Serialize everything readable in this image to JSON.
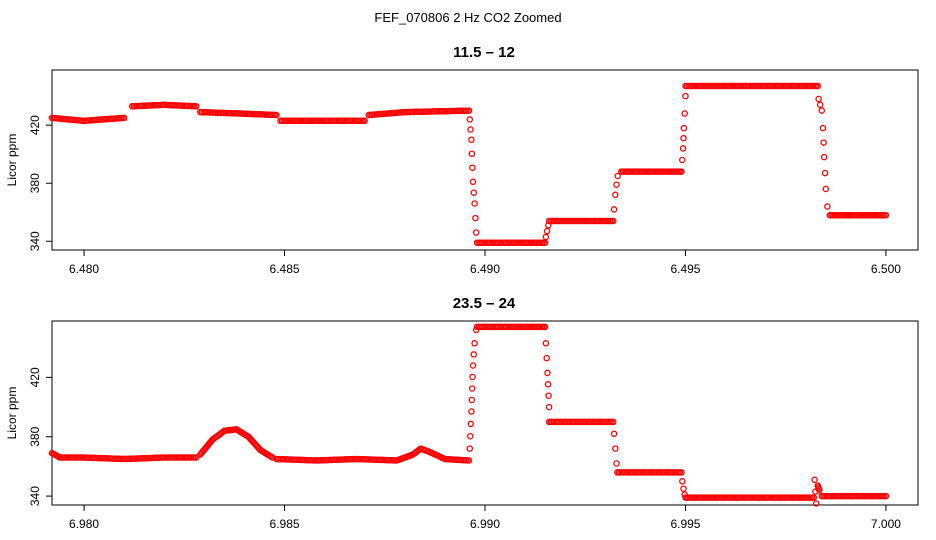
{
  "figure": {
    "title": "FEF_070806  2 Hz CO2 Zoomed"
  },
  "colors": {
    "points": "#ff0000",
    "axes": "#000000",
    "background": "#ffffff"
  },
  "chart_data": [
    {
      "type": "scatter",
      "title": "11.5 – 12",
      "xlabel": "",
      "ylabel": "Licor ppm",
      "xlim": [
        6.4792,
        6.5008
      ],
      "ylim": [
        334,
        458
      ],
      "xticks": [
        6.48,
        6.485,
        6.49,
        6.495,
        6.5
      ],
      "xtick_labels": [
        "6.480",
        "6.485",
        "6.490",
        "6.495",
        "6.500"
      ],
      "yticks": [
        340,
        380,
        420
      ],
      "ytick_labels": [
        "340",
        "380",
        "420"
      ],
      "grid": false,
      "legend": "none",
      "marker": "open-circle",
      "segments": [
        {
          "x": [
            6.4792,
            6.48,
            6.481
          ],
          "y": [
            425,
            423,
            425
          ]
        },
        {
          "x": [
            6.4812,
            6.482,
            6.4828
          ],
          "y": [
            433,
            434,
            433
          ]
        },
        {
          "x": [
            6.4829,
            6.4839,
            6.4848
          ],
          "y": [
            429,
            428,
            427
          ]
        },
        {
          "x": [
            6.4849,
            6.486,
            6.487
          ],
          "y": [
            423,
            423,
            423
          ]
        },
        {
          "x": [
            6.4871,
            6.488,
            6.4896
          ],
          "y": [
            427,
            429,
            430
          ]
        },
        {
          "x": [
            6.48962,
            6.48966,
            6.4897,
            6.48974,
            6.48978
          ],
          "y": [
            424,
            410,
            381,
            366,
            346
          ]
        },
        {
          "x": [
            6.4898,
            6.4906,
            6.4915
          ],
          "y": [
            339,
            339,
            339
          ]
        },
        {
          "x": [
            6.49152,
            6.49155,
            6.49158
          ],
          "y": [
            343,
            347,
            351
          ]
        },
        {
          "x": [
            6.4916,
            6.4924,
            6.4932
          ],
          "y": [
            354,
            354,
            354
          ]
        },
        {
          "x": [
            6.49322,
            6.49325,
            6.49328,
            6.49331
          ],
          "y": [
            362,
            372,
            379,
            385
          ]
        },
        {
          "x": [
            6.4934,
            6.4942,
            6.4949
          ],
          "y": [
            388,
            388,
            388
          ]
        },
        {
          "x": [
            6.49492,
            6.49494,
            6.49496,
            6.49498,
            6.495
          ],
          "y": [
            396,
            404,
            418,
            428,
            440
          ]
        },
        {
          "x": [
            6.495,
            6.4967,
            6.4983
          ],
          "y": [
            447,
            447,
            447
          ]
        },
        {
          "x": [
            6.49832,
            6.49836,
            6.4984,
            6.49843,
            6.49846,
            6.4985,
            6.49854
          ],
          "y": [
            438,
            434,
            430,
            418,
            398,
            376,
            364
          ]
        },
        {
          "x": [
            6.4986,
            6.4993,
            6.5
          ],
          "y": [
            358,
            358,
            358
          ]
        }
      ]
    },
    {
      "type": "scatter",
      "title": "23.5 – 24",
      "xlabel": "",
      "ylabel": "Licor ppm",
      "xlim": [
        6.9792,
        7.0008
      ],
      "ylim": [
        334,
        458
      ],
      "xticks": [
        6.98,
        6.985,
        6.99,
        6.995,
        7.0
      ],
      "xtick_labels": [
        "6.980",
        "6.985",
        "6.990",
        "6.995",
        "7.000"
      ],
      "yticks": [
        340,
        380,
        420
      ],
      "ytick_labels": [
        "340",
        "380",
        "420"
      ],
      "grid": false,
      "legend": "none",
      "marker": "open-circle",
      "segments": [
        {
          "x": [
            6.9792,
            6.9794,
            6.98,
            6.981,
            6.982,
            6.9828
          ],
          "y": [
            369,
            366,
            366,
            365,
            366,
            366
          ]
        },
        {
          "x": [
            6.9829,
            6.9832,
            6.9835,
            6.9838,
            6.9841,
            6.9844,
            6.9847
          ],
          "y": [
            368,
            378,
            384,
            385,
            380,
            371,
            366
          ]
        },
        {
          "x": [
            6.9848,
            6.9858,
            6.9868,
            6.9878,
            6.9882,
            6.9884,
            6.9886,
            6.989,
            6.9896
          ],
          "y": [
            365,
            364,
            365,
            364,
            368,
            372,
            370,
            365,
            364
          ]
        },
        {
          "x": [
            6.98962,
            6.98966,
            6.9897,
            6.98974,
            6.98978
          ],
          "y": [
            372,
            397,
            428,
            443,
            452
          ]
        },
        {
          "x": [
            6.9898,
            6.9906,
            6.9915
          ],
          "y": [
            454,
            454,
            454
          ]
        },
        {
          "x": [
            6.99152,
            6.99156,
            6.9916,
            6.99164
          ],
          "y": [
            443,
            423,
            400,
            390
          ]
        },
        {
          "x": [
            6.9916,
            6.9924,
            6.9932
          ],
          "y": [
            390,
            390,
            390
          ]
        },
        {
          "x": [
            6.99322,
            6.99325,
            6.99328
          ],
          "y": [
            382,
            372,
            362
          ]
        },
        {
          "x": [
            6.9933,
            6.9941,
            6.9949
          ],
          "y": [
            356,
            356,
            356
          ]
        },
        {
          "x": [
            6.99492,
            6.99495,
            6.99498
          ],
          "y": [
            350,
            345,
            341
          ]
        },
        {
          "x": [
            6.995,
            6.9965,
            6.9982
          ],
          "y": [
            339,
            339,
            339
          ]
        },
        {
          "x": [
            6.99822,
            6.99826,
            6.9983,
            6.99834
          ],
          "y": [
            351,
            335,
            347,
            344
          ]
        },
        {
          "x": [
            6.9984,
            6.9992,
            7.0
          ],
          "y": [
            340,
            340,
            340
          ]
        }
      ]
    }
  ]
}
